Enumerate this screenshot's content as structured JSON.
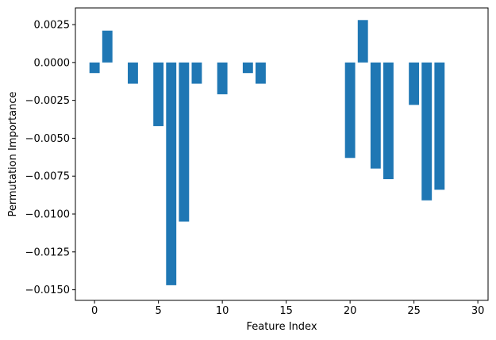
{
  "chart_data": {
    "type": "bar",
    "title": "",
    "xlabel": "Feature Index",
    "ylabel": "Permutation Importance",
    "xlim": [
      -1.5,
      30.8
    ],
    "ylim": [
      -0.0157,
      0.0036
    ],
    "xticks": [
      0,
      5,
      10,
      15,
      20,
      25,
      30
    ],
    "yticks": [
      0.0025,
      0.0,
      -0.0025,
      -0.005,
      -0.0075,
      -0.01,
      -0.0125,
      -0.015
    ],
    "ytick_labels": [
      "0.0025",
      "0.0000",
      "−0.0025",
      "−0.0050",
      "−0.0075",
      "−0.0100",
      "−0.0125",
      "−0.0150"
    ],
    "grid": false,
    "color": "#1f77b4",
    "x": [
      0,
      1,
      3,
      5,
      6,
      7,
      8,
      10,
      12,
      13,
      20,
      21,
      22,
      23,
      25,
      26,
      27
    ],
    "values": [
      -0.0007,
      0.0021,
      -0.0014,
      -0.0042,
      -0.0147,
      -0.0105,
      -0.0014,
      -0.0021,
      -0.0007,
      -0.0014,
      -0.0063,
      0.0028,
      -0.007,
      -0.0077,
      -0.0028,
      -0.0091,
      -0.0084
    ]
  }
}
